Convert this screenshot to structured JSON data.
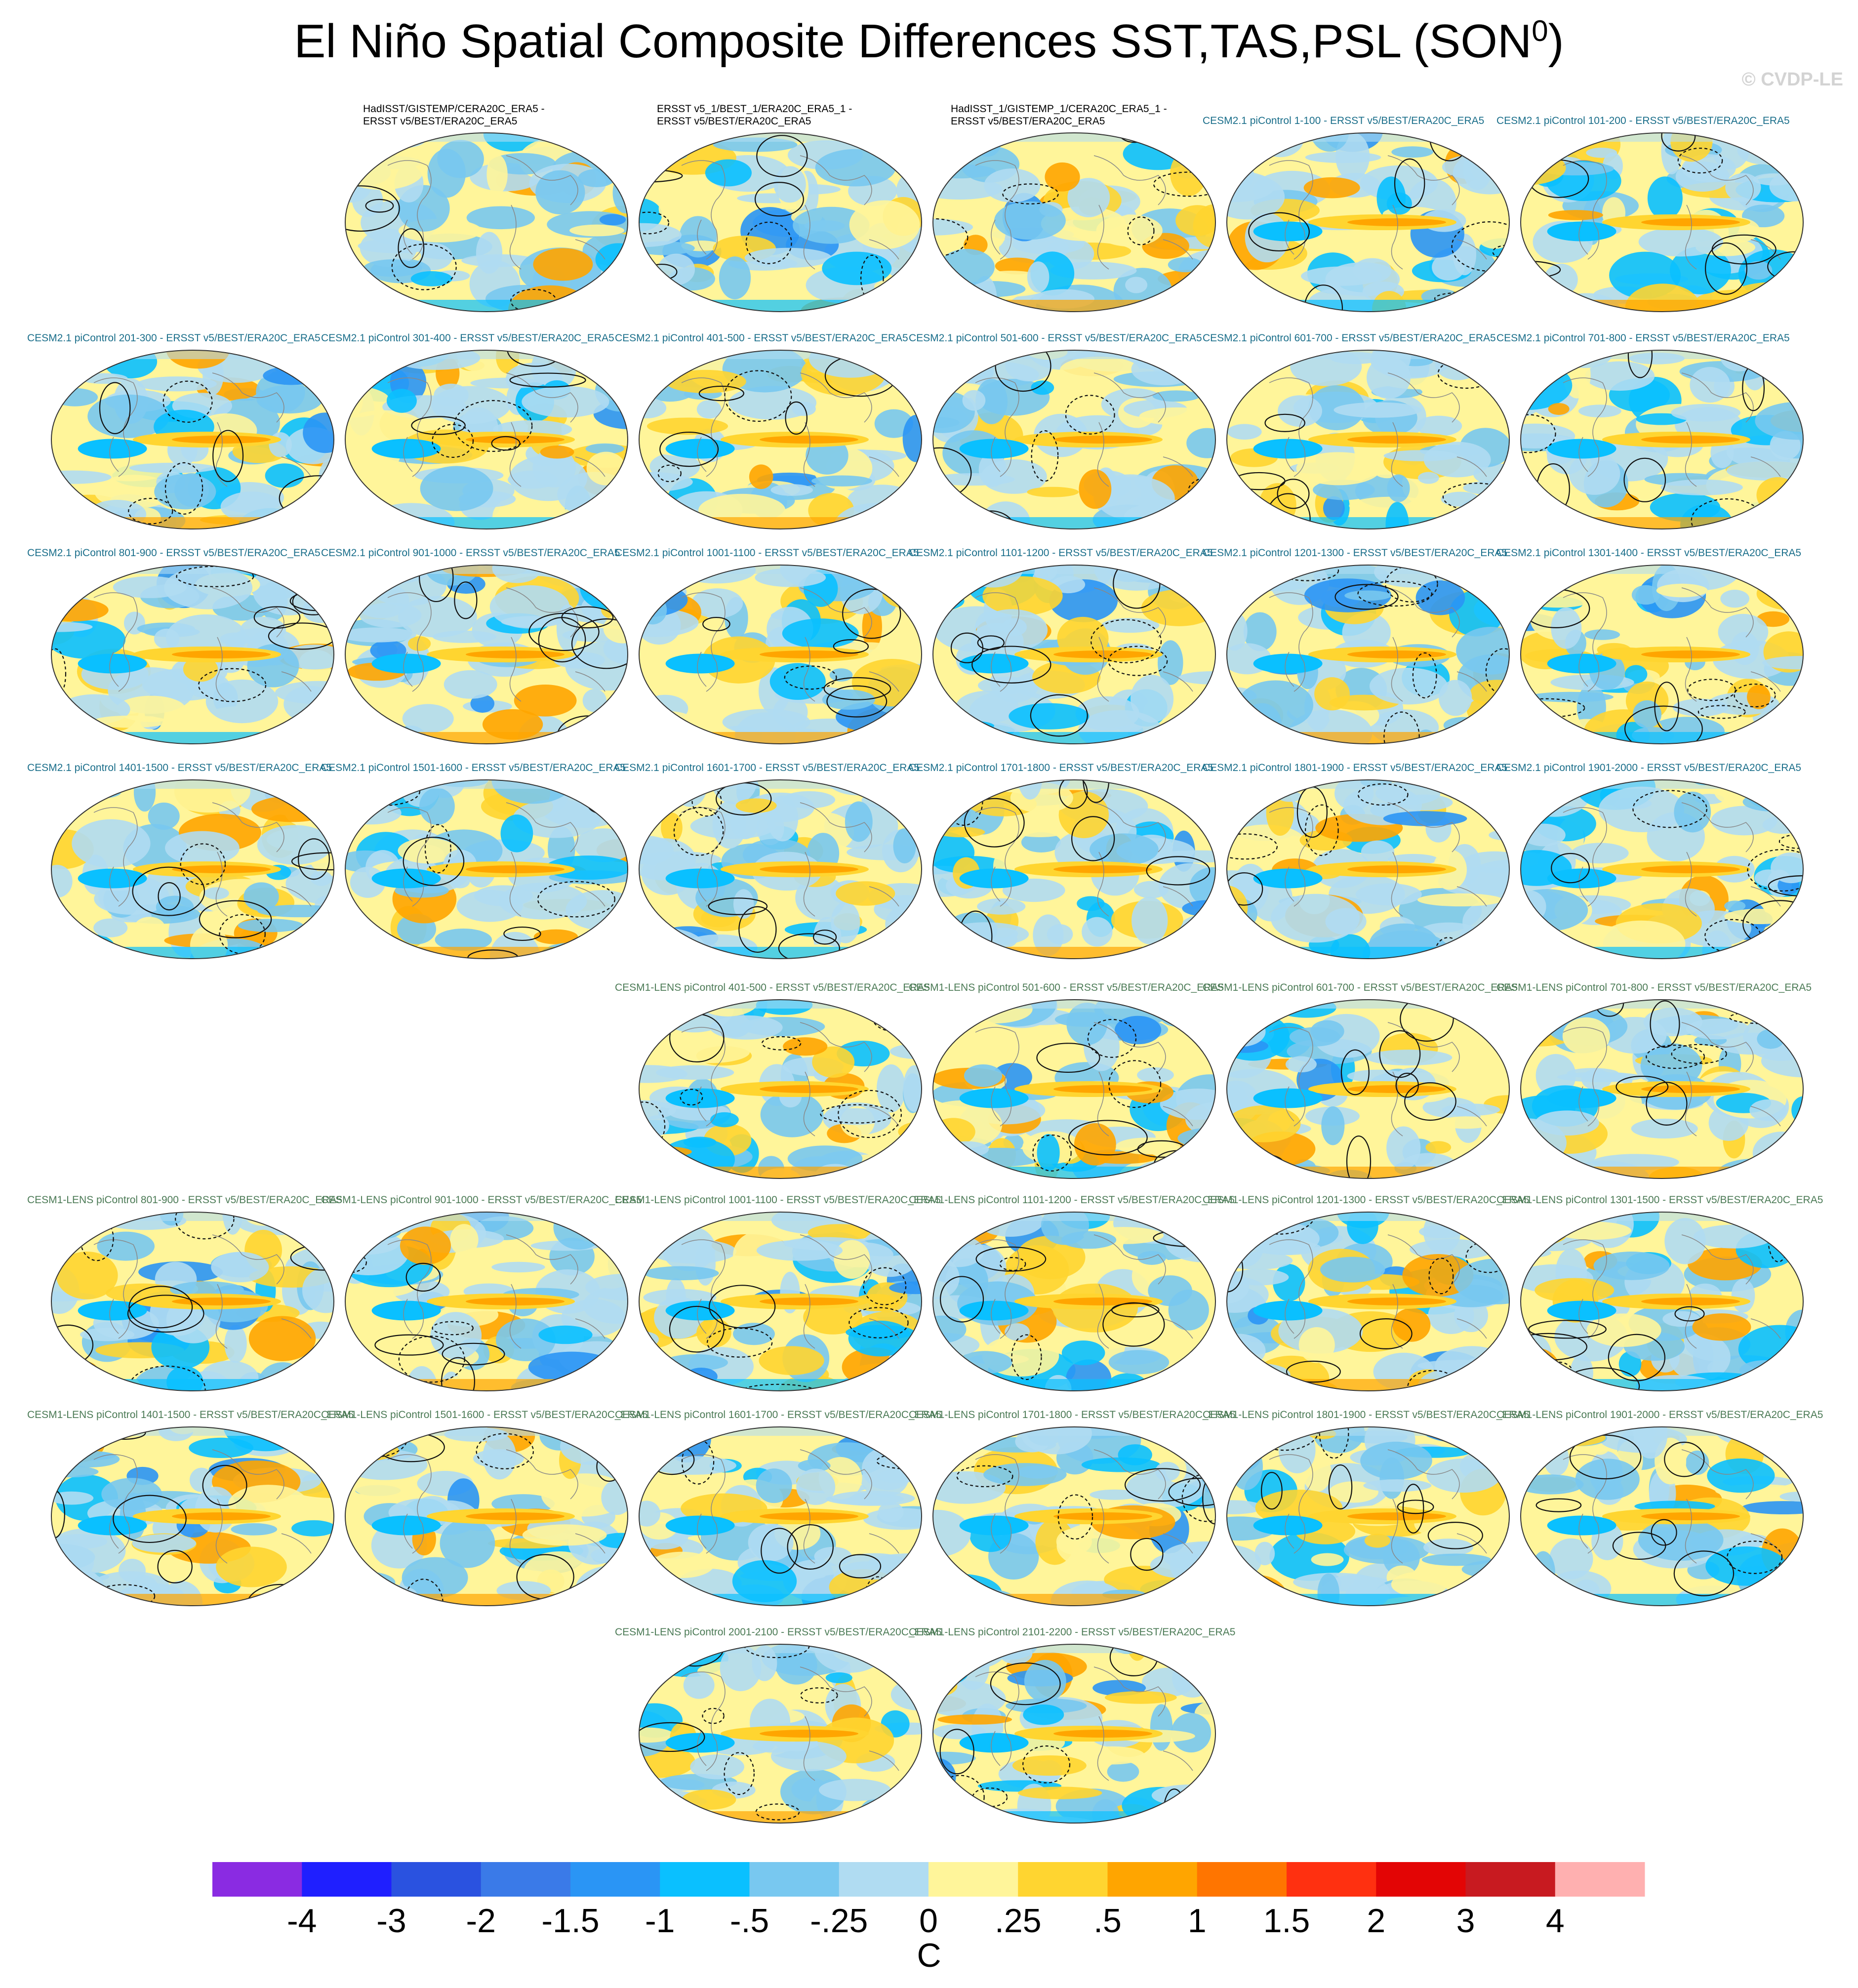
{
  "title": {
    "main": "El Niño Spatial Composite Differences SST,TAS,PSL (SON",
    "superscript": "0",
    "close": ")"
  },
  "watermark": "© CVDP-LE",
  "panels": [
    {
      "label_line1": "HadISST/GISTEMP/CERA20C_ERA5 -",
      "label_line2": "ERSST v5/BEST/ERA20C_ERA5",
      "group": "obs"
    },
    {
      "label_line1": "ERSST v5_1/BEST_1/ERA20C_ERA5_1 -",
      "label_line2": "ERSST v5/BEST/ERA20C_ERA5",
      "group": "obs"
    },
    {
      "label_line1": "HadISST_1/GISTEMP_1/CERA20C_ERA5_1 -",
      "label_line2": "ERSST v5/BEST/ERA20C_ERA5",
      "group": "obs"
    },
    {
      "label_line1": "CESM2.1 piControl 1-100 - ERSST v5/BEST/ERA20C_ERA5",
      "label_line2": "",
      "group": "cesm2"
    },
    {
      "label_line1": "CESM2.1 piControl 101-200 - ERSST v5/BEST/ERA20C_ERA5",
      "label_line2": "",
      "group": "cesm2"
    },
    {
      "label_line1": "CESM2.1 piControl 201-300 - ERSST v5/BEST/ERA20C_ERA5",
      "label_line2": "",
      "group": "cesm2"
    },
    {
      "label_line1": "CESM2.1 piControl 301-400 - ERSST v5/BEST/ERA20C_ERA5",
      "label_line2": "",
      "group": "cesm2"
    },
    {
      "label_line1": "CESM2.1 piControl 401-500 - ERSST v5/BEST/ERA20C_ERA5",
      "label_line2": "",
      "group": "cesm2"
    },
    {
      "label_line1": "CESM2.1 piControl 501-600 - ERSST v5/BEST/ERA20C_ERA5",
      "label_line2": "",
      "group": "cesm2"
    },
    {
      "label_line1": "CESM2.1 piControl 601-700 - ERSST v5/BEST/ERA20C_ERA5",
      "label_line2": "",
      "group": "cesm2"
    },
    {
      "label_line1": "CESM2.1 piControl 701-800 - ERSST v5/BEST/ERA20C_ERA5",
      "label_line2": "",
      "group": "cesm2"
    },
    {
      "label_line1": "CESM2.1 piControl 801-900 - ERSST v5/BEST/ERA20C_ERA5",
      "label_line2": "",
      "group": "cesm2"
    },
    {
      "label_line1": "CESM2.1 piControl 901-1000 - ERSST v5/BEST/ERA20C_ERA5",
      "label_line2": "",
      "group": "cesm2"
    },
    {
      "label_line1": "CESM2.1 piControl 1001-1100 - ERSST v5/BEST/ERA20C_ERA5",
      "label_line2": "",
      "group": "cesm2"
    },
    {
      "label_line1": "CESM2.1 piControl 1101-1200 - ERSST v5/BEST/ERA20C_ERA5",
      "label_line2": "",
      "group": "cesm2"
    },
    {
      "label_line1": "CESM2.1 piControl 1201-1300 - ERSST v5/BEST/ERA20C_ERA5",
      "label_line2": "",
      "group": "cesm2"
    },
    {
      "label_line1": "CESM2.1 piControl 1301-1400 - ERSST v5/BEST/ERA20C_ERA5",
      "label_line2": "",
      "group": "cesm2"
    },
    {
      "label_line1": "CESM2.1 piControl 1401-1500 - ERSST v5/BEST/ERA20C_ERA5",
      "label_line2": "",
      "group": "cesm2"
    },
    {
      "label_line1": "CESM2.1 piControl 1501-1600 - ERSST v5/BEST/ERA20C_ERA5",
      "label_line2": "",
      "group": "cesm2"
    },
    {
      "label_line1": "CESM2.1 piControl 1601-1700 - ERSST v5/BEST/ERA20C_ERA5",
      "label_line2": "",
      "group": "cesm2"
    },
    {
      "label_line1": "CESM2.1 piControl 1701-1800 - ERSST v5/BEST/ERA20C_ERA5",
      "label_line2": "",
      "group": "cesm2"
    },
    {
      "label_line1": "CESM2.1 piControl 1801-1900 - ERSST v5/BEST/ERA20C_ERA5",
      "label_line2": "",
      "group": "cesm2"
    },
    {
      "label_line1": "CESM2.1 piControl 1901-2000 - ERSST v5/BEST/ERA20C_ERA5",
      "label_line2": "",
      "group": "cesm2"
    },
    {
      "label_line1": "CESM1-LENS piControl 401-500 - ERSST v5/BEST/ERA20C_ERA5",
      "label_line2": "",
      "group": "lens"
    },
    {
      "label_line1": "CESM1-LENS piControl 501-600 - ERSST v5/BEST/ERA20C_ERA5",
      "label_line2": "",
      "group": "lens"
    },
    {
      "label_line1": "CESM1-LENS piControl 601-700 - ERSST v5/BEST/ERA20C_ERA5",
      "label_line2": "",
      "group": "lens"
    },
    {
      "label_line1": "CESM1-LENS piControl 701-800 - ERSST v5/BEST/ERA20C_ERA5",
      "label_line2": "",
      "group": "lens"
    },
    {
      "label_line1": "CESM1-LENS piControl 801-900 - ERSST v5/BEST/ERA20C_ERA5",
      "label_line2": "",
      "group": "lens"
    },
    {
      "label_line1": "CESM1-LENS piControl 901-1000 - ERSST v5/BEST/ERA20C_ERA5",
      "label_line2": "",
      "group": "lens"
    },
    {
      "label_line1": "CESM1-LENS piControl 1001-1100 - ERSST v5/BEST/ERA20C_ERA5",
      "label_line2": "",
      "group": "lens"
    },
    {
      "label_line1": "CESM1-LENS piControl 1101-1200 - ERSST v5/BEST/ERA20C_ERA5",
      "label_line2": "",
      "group": "lens"
    },
    {
      "label_line1": "CESM1-LENS piControl 1201-1300 - ERSST v5/BEST/ERA20C_ERA5",
      "label_line2": "",
      "group": "lens"
    },
    {
      "label_line1": "CESM1-LENS piControl 1301-1500 - ERSST v5/BEST/ERA20C_ERA5",
      "label_line2": "",
      "group": "lens"
    },
    {
      "label_line1": "CESM1-LENS piControl 1401-1500 - ERSST v5/BEST/ERA20C_ERA5",
      "label_line2": "",
      "group": "lens"
    },
    {
      "label_line1": "CESM1-LENS piControl 1501-1600 - ERSST v5/BEST/ERA20C_ERA5",
      "label_line2": "",
      "group": "lens"
    },
    {
      "label_line1": "CESM1-LENS piControl 1601-1700 - ERSST v5/BEST/ERA20C_ERA5",
      "label_line2": "",
      "group": "lens"
    },
    {
      "label_line1": "CESM1-LENS piControl 1701-1800 - ERSST v5/BEST/ERA20C_ERA5",
      "label_line2": "",
      "group": "lens"
    },
    {
      "label_line1": "CESM1-LENS piControl 1801-1900 - ERSST v5/BEST/ERA20C_ERA5",
      "label_line2": "",
      "group": "lens"
    },
    {
      "label_line1": "CESM1-LENS piControl 1901-2000 - ERSST v5/BEST/ERA20C_ERA5",
      "label_line2": "",
      "group": "lens"
    },
    {
      "label_line1": "CESM1-LENS piControl 2001-2100 - ERSST v5/BEST/ERA20C_ERA5",
      "label_line2": "",
      "group": "lens"
    },
    {
      "label_line1": "CESM1-LENS piControl 2101-2200 - ERSST v5/BEST/ERA20C_ERA5",
      "label_line2": "",
      "group": "lens"
    }
  ],
  "colors": {
    "obs_label": "#000000",
    "cesm2_label": "#1a6e8a",
    "lens_label": "#4b7a55",
    "watermark": "#d3d3d3"
  },
  "chart_data": {
    "type": "heatmap",
    "description_type": "map panels (Robinson projection), shaded temperature differences with PSL contours",
    "colorbar": {
      "units": "C",
      "ticks": [
        "-4",
        "-3",
        "-2",
        "-1.5",
        "-1",
        "-.5",
        "-.25",
        "0",
        ".25",
        ".5",
        "1",
        "1.5",
        "2",
        "3",
        "4"
      ],
      "colors": [
        "#8a2be2",
        "#1f1fff",
        "#2a52e0",
        "#3a7ae8",
        "#2a95f5",
        "#0ac0ff",
        "#78c8f0",
        "#b0dcf2",
        "#fff59a",
        "#ffd530",
        "#ffa500",
        "#ff7500",
        "#ff3010",
        "#e30505",
        "#c81a20",
        "#ffb0b0"
      ]
    }
  }
}
